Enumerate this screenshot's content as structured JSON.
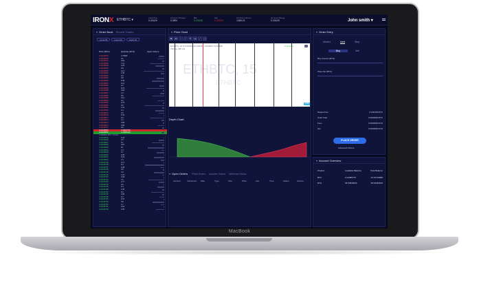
{
  "device": {
    "brand_label": "MacBook"
  },
  "topbar": {
    "logo_text": "IRON",
    "logo_mark": "X",
    "pair": "ETHBTC",
    "pair_caret": "▾",
    "stats": [
      {
        "label": "Last Price",
        "value": "0.03429",
        "tone": "plain"
      },
      {
        "label": "24 Hour Change",
        "value": "0.38%",
        "tone": "plain"
      },
      {
        "label": "Bid",
        "value": "0.03428",
        "tone": "g"
      },
      {
        "label": "Ask",
        "value": "0.03429",
        "tone": "r"
      },
      {
        "label": "24 Hour Volume",
        "value": "1365.21",
        "tone": "plain"
      },
      {
        "label": "24 Hour Range",
        "value": "0.03429",
        "tone": "plain"
      }
    ],
    "user": "John smith",
    "user_caret": "▾"
  },
  "orderbook": {
    "title": "Order Book",
    "tab2": "Recent Trades",
    "chips": [
      "Level 50",
      "Level 20",
      "Level 10"
    ],
    "cols": [
      "Price (BTC)",
      "Quantity (ETH)",
      "Open Orders"
    ],
    "asks": [
      {
        "p": "0.03428903",
        "q": "2.79683"
      },
      {
        "p": "0.03428902",
        "q": "3.1"
      },
      {
        "p": "0.03428901",
        "q": "0.93"
      },
      {
        "p": "0.03428899",
        "q": "7.12"
      },
      {
        "p": "0.03428898",
        "q": "4.26"
      },
      {
        "p": "0.03428897",
        "q": "0.9"
      },
      {
        "p": "0.03428896",
        "q": "12.4"
      },
      {
        "p": "0.03428895",
        "q": "1.55"
      },
      {
        "p": "0.03428894",
        "q": "0.2"
      },
      {
        "p": "0.03428893",
        "q": "3.8"
      },
      {
        "p": "0.03428892",
        "q": "6.05"
      },
      {
        "p": "0.03428891",
        "q": "0.41"
      },
      {
        "p": "0.03428890",
        "q": "2.2"
      },
      {
        "p": "0.03428889",
        "q": "8.73"
      },
      {
        "p": "0.03428888",
        "q": "0.66"
      },
      {
        "p": "0.03428887",
        "q": "1.9"
      },
      {
        "p": "0.03428886",
        "q": "5.5"
      },
      {
        "p": "0.03428885",
        "q": "0.12"
      },
      {
        "p": "0.03428884",
        "q": "3.3"
      },
      {
        "p": "0.03428883",
        "q": "0.75"
      },
      {
        "p": "0.03428882",
        "q": "9.8"
      },
      {
        "p": "0.03428881",
        "q": "1.01"
      },
      {
        "p": "0.03428880",
        "q": "4.4"
      },
      {
        "p": "0.03428879",
        "q": "2.6"
      },
      {
        "p": "0.03428878",
        "q": "0.33"
      },
      {
        "p": "0.03428877",
        "q": "6.9"
      },
      {
        "p": "0.03428876",
        "q": "1.2"
      },
      {
        "p": "0.03428875",
        "q": "0.58"
      },
      {
        "p": "0.03428874",
        "q": "3.06"
      },
      {
        "p": "0.03428873",
        "q": "0.9"
      }
    ],
    "best_ask": {
      "p": "0.03428840",
      "q": "0.49847064"
    },
    "best_bid": {
      "p": "0.03428810",
      "q": "1.24880103"
    },
    "spread": "1.0263821 BTC / 0.0341",
    "bids": [
      {
        "p": "0.03428809",
        "q": "0.44"
      },
      {
        "p": "0.03428808",
        "q": "2.5"
      },
      {
        "p": "0.03428807",
        "q": "6.1"
      },
      {
        "p": "0.03428806",
        "q": "0.87"
      },
      {
        "p": "0.03428805",
        "q": "8.1"
      },
      {
        "p": "0.03428804",
        "q": "1.3"
      },
      {
        "p": "0.03428803",
        "q": "3.7"
      },
      {
        "p": "0.03428802",
        "q": "0.29"
      },
      {
        "p": "0.03428801",
        "q": "5.02"
      },
      {
        "p": "0.03428800",
        "q": "1.6"
      },
      {
        "p": "0.03428799",
        "q": "0.71"
      },
      {
        "p": "0.03428798",
        "q": "9.4"
      },
      {
        "p": "0.03428797",
        "q": "2.08"
      },
      {
        "p": "0.03428796",
        "q": "0.5"
      },
      {
        "p": "0.03428795",
        "q": "4.9"
      },
      {
        "p": "0.03428794",
        "q": "1.15"
      },
      {
        "p": "0.03428793",
        "q": "0.38"
      },
      {
        "p": "0.03428792",
        "q": "7.6"
      },
      {
        "p": "0.03428791",
        "q": "2.77"
      },
      {
        "p": "0.03428790",
        "q": "0.6"
      },
      {
        "p": "0.03428789",
        "q": "3.4"
      },
      {
        "p": "0.03428788",
        "q": "1.05"
      },
      {
        "p": "0.03428787",
        "q": "6.3"
      },
      {
        "p": "0.03428786",
        "q": "0.95"
      },
      {
        "p": "0.03428785",
        "q": "2.2"
      },
      {
        "p": "0.03428784",
        "q": "0.47"
      },
      {
        "p": "0.03428783",
        "q": "5.8"
      },
      {
        "p": "0.03428782",
        "q": "1.7"
      },
      {
        "p": "0.03428781",
        "q": "0.31"
      },
      {
        "p": "0.03428780",
        "q": "4.05"
      }
    ]
  },
  "chart": {
    "title": "Price Chart",
    "header_text": "ETHBTC, 15  O:0.03429 H:0.03429 L:0.03428 C:0.03428",
    "header_sub": "Volume (20) n/a",
    "legend": "● Volume",
    "watermark": "ETHBTC, 15",
    "watermark2": "ETHBTC",
    "price_tag": "0.034",
    "toolbar": [
      "▣",
      "▤",
      "⌁",
      "ƒ",
      "⚙",
      "▥",
      "⤢",
      "◫"
    ]
  },
  "depth": {
    "title": "Depth Chart",
    "colors": {
      "bid": "#2f7d3a",
      "ask": "#a21c3a"
    }
  },
  "open_orders": {
    "title": "Open Orders",
    "tabs": [
      "Filled Orders",
      "Inactive Orders",
      "Withdraw Status"
    ],
    "cols": [
      "Account",
      "Instrument",
      "Side",
      "Type",
      "Size",
      "Price",
      "Fee",
      "Time",
      "Status",
      "Actions"
    ]
  },
  "order_entry": {
    "title": "Order Entry",
    "tabs": [
      "Market",
      "Limit",
      "Stop"
    ],
    "sides": [
      "Buy",
      "Sell"
    ],
    "fields": [
      "Buy Amount (ETH)",
      "Price Per (BTC)"
    ],
    "summary": [
      {
        "k": "Market Price",
        "v": "0.0387636 BTC"
      },
      {
        "k": "Order Total",
        "v": "0.00000000 BTC"
      },
      {
        "k": "Fees",
        "v": "0.00000000 ETH"
      },
      {
        "k": "Net",
        "v": "0.00000000 ETH"
      }
    ],
    "place_label": "PLACE ORDER",
    "advanced_label": "Advanced Orders"
  },
  "account": {
    "title": "Account Overview",
    "cols": [
      "Product",
      "Available Balance",
      "Total Balance"
    ],
    "rows": [
      {
        "product": "BTC",
        "avail": "0.12486773",
        "total": "13.79719956"
      },
      {
        "product": "ETH",
        "avail": "35.63040632",
        "total": "35.63040632"
      }
    ]
  },
  "colors": {
    "accent": "#2d6ee8",
    "ask": "#e24a4f",
    "bid": "#34c759",
    "brand_red": "#e2262d"
  }
}
